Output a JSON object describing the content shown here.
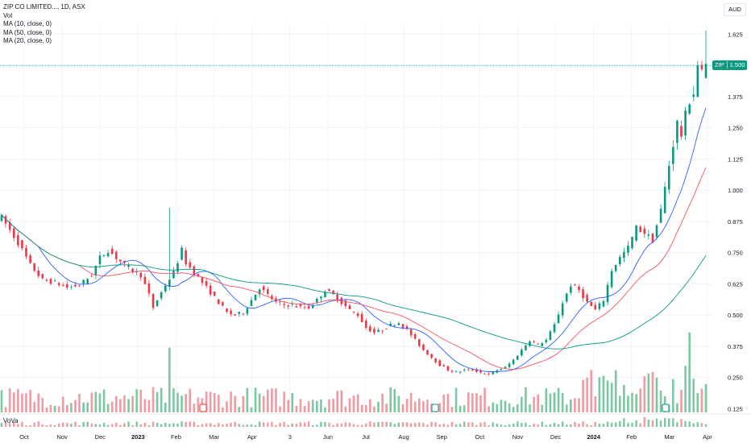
{
  "header": {
    "title": "ZIP CO LIMITED..., 1D, ASX",
    "indicators": [
      "Vol",
      "MA (10, close, 0)",
      "MA (50, close, 0)",
      "MA (20, close, 0)"
    ],
    "currency": "AUD"
  },
  "price_tag": {
    "symbol": "ZIP",
    "price": "1.500"
  },
  "lower_pane": {
    "label": "VoVa"
  },
  "colors": {
    "up": "#089981",
    "down": "#f23645",
    "ma10": "#2962ff",
    "ma20": "#f7525f",
    "ma50": "#089981",
    "grid": "#f0f3fa"
  },
  "chart_data": {
    "type": "candlestick",
    "y_axis": {
      "ticks": [
        0.125,
        0.25,
        0.375,
        0.5,
        0.625,
        0.75,
        0.875,
        1.0,
        1.125,
        1.25,
        1.375,
        1.5,
        1.625
      ],
      "tick_labels": [
        "0.125",
        "0.250",
        "0.375",
        "0.500",
        "0.625",
        "0.750",
        "0.875",
        "1.000",
        "1.125",
        "1.250",
        "1.375",
        "1.500",
        "1.625"
      ],
      "range": [
        0.11,
        1.665
      ]
    },
    "x_axis": {
      "labels": [
        "Oct",
        "Nov",
        "Dec",
        "2023",
        "Feb",
        "Mar",
        "Apr",
        "3",
        "Jun",
        "Jul",
        "Aug",
        "Sep",
        "Oct",
        "Nov",
        "Dec",
        "2024",
        "Feb",
        "Mar",
        "Apr"
      ]
    },
    "close_path": [
      [
        0,
        0.89
      ],
      [
        4,
        0.79
      ],
      [
        7,
        0.7
      ],
      [
        10,
        0.64
      ],
      [
        13,
        0.63
      ],
      [
        16,
        0.61
      ],
      [
        19,
        0.62
      ],
      [
        22,
        0.66
      ],
      [
        24,
        0.73
      ],
      [
        26,
        0.76
      ],
      [
        28,
        0.73
      ],
      [
        30,
        0.7
      ],
      [
        32,
        0.68
      ],
      [
        34,
        0.66
      ],
      [
        36,
        0.58
      ],
      [
        37,
        0.53
      ],
      [
        38,
        0.56
      ],
      [
        40,
        0.62
      ],
      [
        42,
        0.67
      ],
      [
        44,
        0.76
      ],
      [
        45,
        0.71
      ],
      [
        47,
        0.67
      ],
      [
        49,
        0.63
      ],
      [
        51,
        0.59
      ],
      [
        53,
        0.55
      ],
      [
        55,
        0.51
      ],
      [
        57,
        0.5
      ],
      [
        59,
        0.51
      ],
      [
        61,
        0.56
      ],
      [
        63,
        0.61
      ],
      [
        65,
        0.58
      ],
      [
        67,
        0.55
      ],
      [
        69,
        0.54
      ],
      [
        71,
        0.54
      ],
      [
        73,
        0.53
      ],
      [
        75,
        0.53
      ],
      [
        77,
        0.56
      ],
      [
        79,
        0.6
      ],
      [
        81,
        0.58
      ],
      [
        83,
        0.55
      ],
      [
        85,
        0.52
      ],
      [
        87,
        0.5
      ],
      [
        89,
        0.45
      ],
      [
        91,
        0.43
      ],
      [
        93,
        0.44
      ],
      [
        95,
        0.46
      ],
      [
        97,
        0.47
      ],
      [
        99,
        0.44
      ],
      [
        101,
        0.4
      ],
      [
        103,
        0.36
      ],
      [
        105,
        0.33
      ],
      [
        107,
        0.3
      ],
      [
        109,
        0.28
      ],
      [
        111,
        0.27
      ],
      [
        113,
        0.28
      ],
      [
        115,
        0.28
      ],
      [
        117,
        0.27
      ],
      [
        119,
        0.26
      ],
      [
        121,
        0.28
      ],
      [
        123,
        0.29
      ],
      [
        125,
        0.32
      ],
      [
        127,
        0.36
      ],
      [
        129,
        0.4
      ],
      [
        131,
        0.38
      ],
      [
        133,
        0.4
      ],
      [
        135,
        0.46
      ],
      [
        137,
        0.55
      ],
      [
        139,
        0.62
      ],
      [
        141,
        0.6
      ],
      [
        143,
        0.55
      ],
      [
        145,
        0.52
      ],
      [
        147,
        0.56
      ],
      [
        149,
        0.68
      ],
      [
        151,
        0.73
      ],
      [
        153,
        0.77
      ],
      [
        155,
        0.85
      ],
      [
        157,
        0.83
      ],
      [
        159,
        0.8
      ],
      [
        161,
        0.92
      ],
      [
        163,
        1.1
      ],
      [
        165,
        1.27
      ],
      [
        166,
        1.22
      ],
      [
        167,
        1.3
      ],
      [
        168,
        1.36
      ],
      [
        169,
        1.39
      ],
      [
        170,
        1.5
      ],
      [
        171,
        1.47
      ],
      [
        172,
        1.5
      ]
    ],
    "volume_range": [
      0,
      1.0
    ],
    "series": [
      {
        "name": "MA (10, close, 0)"
      },
      {
        "name": "MA (20, close, 0)"
      },
      {
        "name": "MA (50, close, 0)"
      }
    ],
    "last_price": 1.5
  }
}
